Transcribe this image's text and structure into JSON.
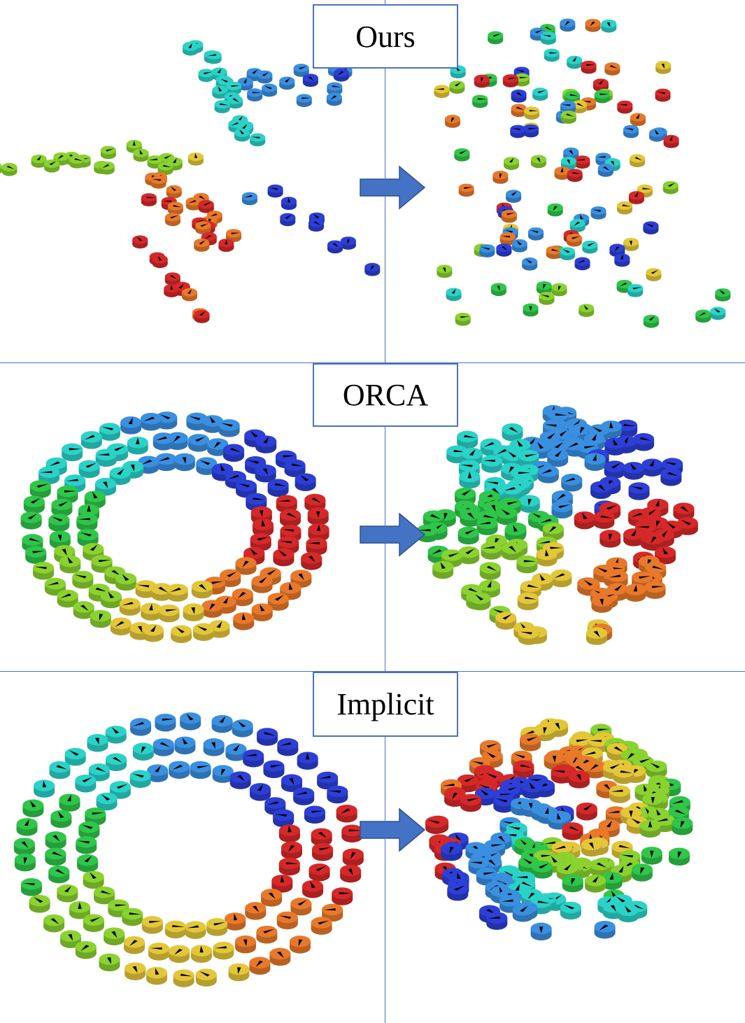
{
  "figure": {
    "panels": [
      {
        "label": "Ours"
      },
      {
        "label": "ORCA"
      },
      {
        "label": "Implicit"
      }
    ],
    "arrow_color": "#4472c4",
    "divider_color": "#4a72c4",
    "agent_colors": [
      "#d62828",
      "#e8792a",
      "#e3c739",
      "#8ad22f",
      "#2fc64a",
      "#2ad2c8",
      "#3a8fe0",
      "#2c3fd6"
    ]
  }
}
